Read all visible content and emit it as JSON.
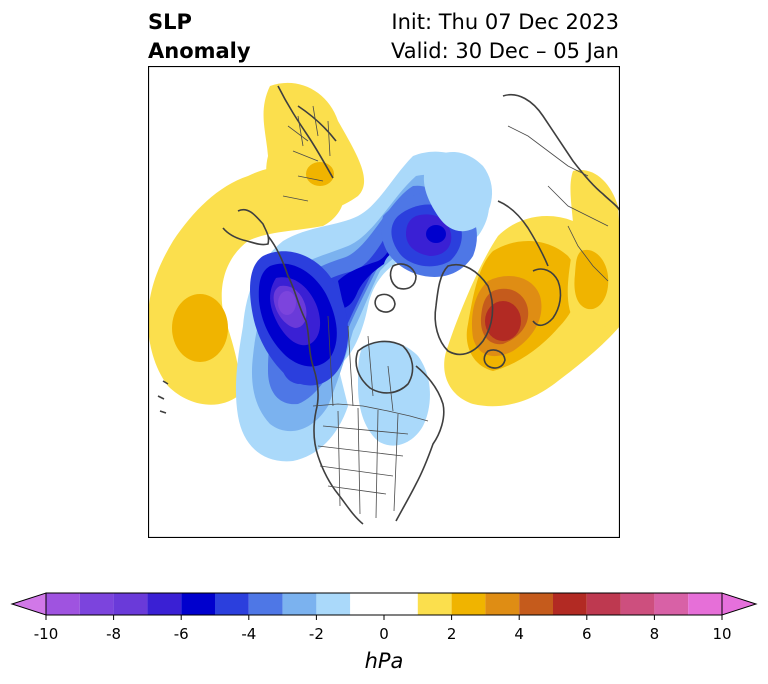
{
  "header": {
    "title_line1": "SLP",
    "title_line2": "Anomaly",
    "init_text": "Init: Thu 07 Dec 2023",
    "valid_text": "Valid: 30 Dec – 05 Jan"
  },
  "map": {
    "projection": "polar stereographic, North America / Arctic",
    "features": [
      "coastlines",
      "country-borders",
      "us-state-borders",
      "canadian-provinces"
    ],
    "anomaly_centers": [
      {
        "label": "low-western-canada",
        "value_hpa": -9,
        "color": "#7b3fd6"
      },
      {
        "label": "low-arctic-ocean",
        "value_hpa": -6,
        "color": "#2b3bd9"
      },
      {
        "label": "high-scandinavia-barents",
        "value_hpa": 6,
        "color": "#b22a23"
      },
      {
        "label": "high-north-pacific",
        "value_hpa": 2,
        "color": "#f0b400"
      },
      {
        "label": "high-east-asia",
        "value_hpa": 2,
        "color": "#f0b400"
      }
    ]
  },
  "colorbar": {
    "unit_label": "hPa",
    "ticks": [
      "-10",
      "-8",
      "-6",
      "-4",
      "-2",
      "0",
      "2",
      "4",
      "6",
      "8",
      "10"
    ],
    "extend": "both",
    "bins": [
      {
        "from": -10,
        "to": -9,
        "color": "#9f53e0"
      },
      {
        "from": -9,
        "to": -8,
        "color": "#7c44dd"
      },
      {
        "from": -8,
        "to": -7,
        "color": "#6a3ad9"
      },
      {
        "from": -7,
        "to": -6,
        "color": "#3a20d4"
      },
      {
        "from": -6,
        "to": -5,
        "color": "#0000cd"
      },
      {
        "from": -5,
        "to": -4,
        "color": "#2b3fdd"
      },
      {
        "from": -4,
        "to": -3,
        "color": "#4e77e6"
      },
      {
        "from": -3,
        "to": -2,
        "color": "#7bb2ef"
      },
      {
        "from": -2,
        "to": -1,
        "color": "#aad9fa"
      },
      {
        "from": -1,
        "to": 1,
        "color": "#ffffff"
      },
      {
        "from": 1,
        "to": 2,
        "color": "#fbdf4d"
      },
      {
        "from": 2,
        "to": 3,
        "color": "#f0b400"
      },
      {
        "from": 3,
        "to": 4,
        "color": "#df8d14"
      },
      {
        "from": 4,
        "to": 5,
        "color": "#c55b1c"
      },
      {
        "from": 5,
        "to": 6,
        "color": "#b22a23"
      },
      {
        "from": 6,
        "to": 7,
        "color": "#be3950"
      },
      {
        "from": 7,
        "to": 8,
        "color": "#cd4f7e"
      },
      {
        "from": 8,
        "to": 9,
        "color": "#d861a6"
      },
      {
        "from": 9,
        "to": 10,
        "color": "#e66fd8"
      }
    ],
    "under_color": "#d178e8",
    "over_color": "#e670dc"
  }
}
